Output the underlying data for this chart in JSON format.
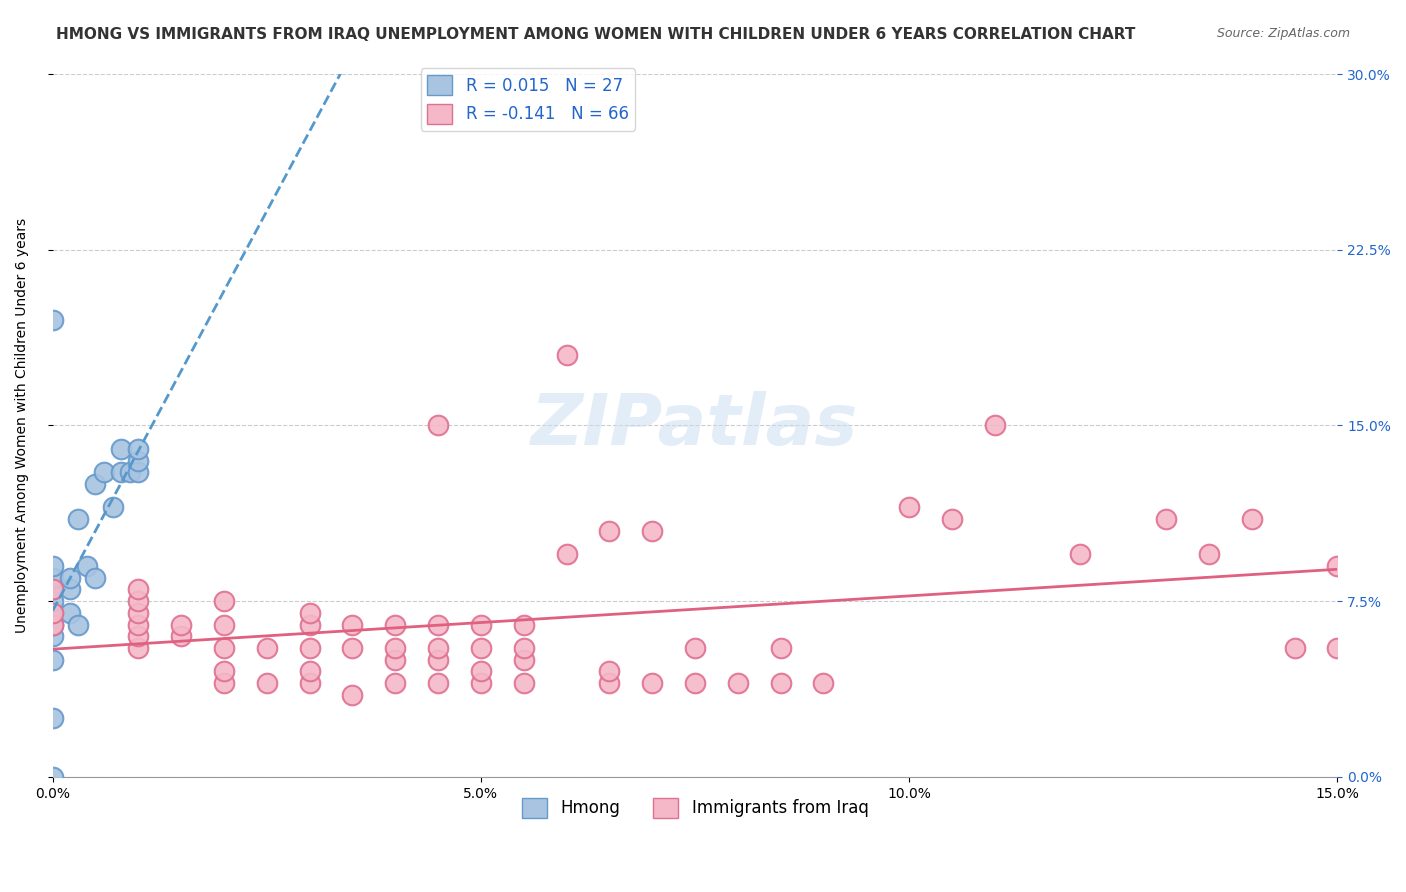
{
  "title": "HMONG VS IMMIGRANTS FROM IRAQ UNEMPLOYMENT AMONG WOMEN WITH CHILDREN UNDER 6 YEARS CORRELATION CHART",
  "source": "Source: ZipAtlas.com",
  "xlabel_bottom": "",
  "ylabel": "Unemployment Among Women with Children Under 6 years",
  "xlim": [
    0.0,
    0.15
  ],
  "ylim": [
    0.0,
    0.3
  ],
  "xticks": [
    0.0,
    0.05,
    0.1,
    0.15
  ],
  "yticks": [
    0.0,
    0.075,
    0.15,
    0.225,
    0.3
  ],
  "ytick_labels_right": [
    "0.0%",
    "7.5%",
    "15.0%",
    "22.5%",
    "30.0%"
  ],
  "xtick_labels": [
    "0.0%",
    "5.0%",
    "10.0%",
    "15.0%"
  ],
  "series1_name": "Hmong",
  "series1_R": 0.015,
  "series1_N": 27,
  "series1_color": "#a8c4e0",
  "series1_edge_color": "#6699cc",
  "series2_name": "Immigrants from Iraq",
  "series2_R": -0.141,
  "series2_N": 66,
  "series2_color": "#f4b8c8",
  "series2_edge_color": "#e07090",
  "trend1_color": "#5599cc",
  "trend2_color": "#e06080",
  "background_color": "#ffffff",
  "grid_color": "#cccccc",
  "watermark": "ZIPatlas",
  "title_fontsize": 11,
  "axis_label_fontsize": 10,
  "tick_fontsize": 10,
  "legend_R_color": "#2266cc",
  "hmong_x": [
    0.0,
    0.0,
    0.0,
    0.0,
    0.0,
    0.0,
    0.0,
    0.0,
    0.0,
    0.0,
    0.002,
    0.002,
    0.002,
    0.003,
    0.003,
    0.004,
    0.005,
    0.005,
    0.006,
    0.007,
    0.008,
    0.008,
    0.009,
    0.01,
    0.01,
    0.01,
    0.0
  ],
  "hmong_y": [
    0.0,
    0.025,
    0.05,
    0.06,
    0.065,
    0.07,
    0.075,
    0.08,
    0.085,
    0.09,
    0.07,
    0.08,
    0.085,
    0.065,
    0.11,
    0.09,
    0.085,
    0.125,
    0.13,
    0.115,
    0.13,
    0.14,
    0.13,
    0.13,
    0.135,
    0.14,
    0.195
  ],
  "iraq_x": [
    0.0,
    0.0,
    0.0,
    0.01,
    0.01,
    0.01,
    0.01,
    0.01,
    0.01,
    0.015,
    0.015,
    0.02,
    0.02,
    0.02,
    0.02,
    0.02,
    0.025,
    0.025,
    0.03,
    0.03,
    0.03,
    0.03,
    0.03,
    0.035,
    0.035,
    0.035,
    0.04,
    0.04,
    0.04,
    0.04,
    0.045,
    0.045,
    0.045,
    0.045,
    0.045,
    0.05,
    0.05,
    0.05,
    0.05,
    0.055,
    0.055,
    0.055,
    0.055,
    0.06,
    0.06,
    0.065,
    0.065,
    0.065,
    0.07,
    0.07,
    0.075,
    0.075,
    0.08,
    0.085,
    0.085,
    0.09,
    0.1,
    0.105,
    0.11,
    0.12,
    0.13,
    0.135,
    0.14,
    0.145,
    0.15,
    0.15
  ],
  "iraq_y": [
    0.065,
    0.07,
    0.08,
    0.055,
    0.06,
    0.065,
    0.07,
    0.075,
    0.08,
    0.06,
    0.065,
    0.04,
    0.045,
    0.055,
    0.065,
    0.075,
    0.04,
    0.055,
    0.04,
    0.045,
    0.055,
    0.065,
    0.07,
    0.035,
    0.055,
    0.065,
    0.04,
    0.05,
    0.055,
    0.065,
    0.04,
    0.05,
    0.055,
    0.065,
    0.15,
    0.04,
    0.045,
    0.055,
    0.065,
    0.04,
    0.05,
    0.055,
    0.065,
    0.095,
    0.18,
    0.04,
    0.045,
    0.105,
    0.04,
    0.105,
    0.04,
    0.055,
    0.04,
    0.04,
    0.055,
    0.04,
    0.115,
    0.11,
    0.15,
    0.095,
    0.11,
    0.095,
    0.11,
    0.055,
    0.055,
    0.09
  ]
}
